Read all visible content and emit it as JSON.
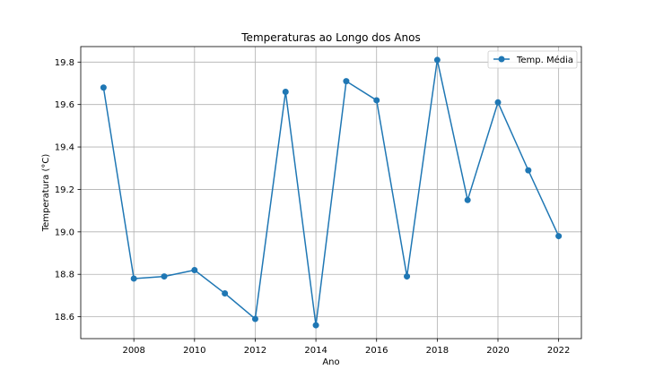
{
  "chart_data": {
    "type": "line",
    "title": "Temperaturas ao Longo dos Anos",
    "xlabel": "Ano",
    "ylabel": "Temperatura (°C)",
    "x": [
      2007,
      2008,
      2009,
      2010,
      2011,
      2012,
      2013,
      2014,
      2015,
      2016,
      2017,
      2018,
      2019,
      2020,
      2021,
      2022
    ],
    "series": [
      {
        "name": "Temp. Média",
        "values": [
          19.68,
          18.78,
          18.79,
          18.82,
          18.71,
          18.59,
          19.66,
          18.56,
          19.71,
          19.62,
          18.79,
          19.81,
          19.15,
          19.61,
          19.29,
          18.98
        ]
      }
    ],
    "xlim": [
      2006.25,
      2022.75
    ],
    "ylim": [
      18.497,
      19.873
    ],
    "xticks": [
      2008,
      2010,
      2012,
      2014,
      2016,
      2018,
      2020,
      2022
    ],
    "yticks": [
      18.6,
      18.8,
      19.0,
      19.2,
      19.4,
      19.6,
      19.8
    ],
    "grid": true,
    "legend_position": "upper right",
    "colors": {
      "series": "#1f77b4",
      "grid": "#b0b0b0",
      "axes": "#000000"
    }
  }
}
